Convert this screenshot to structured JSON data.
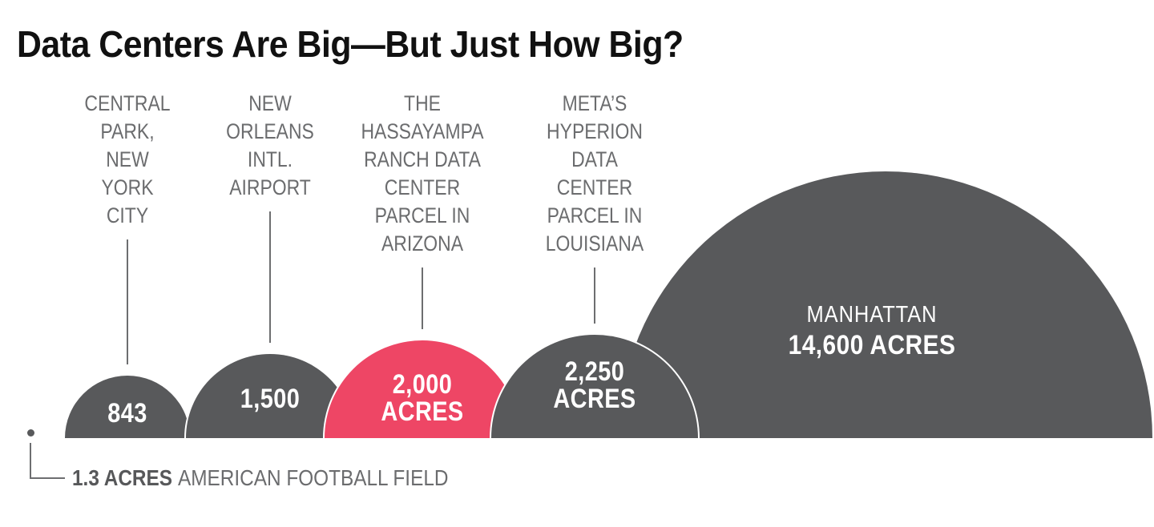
{
  "title": "Data Centers Are Big—But Just How Big?",
  "footnote": {
    "value": "1.3 ACRES",
    "label": "AMERICAN FOOTBALL FIELD"
  },
  "chart_data": {
    "type": "area-proportional-semicircles",
    "title": "Data Centers Are Big—But Just How Big?",
    "unit": "acres",
    "items": [
      {
        "label": "CENTRAL\nPARK,\nNEW\nYORK\nCITY",
        "acres": 843,
        "value_label": "843",
        "highlight": false
      },
      {
        "label": "NEW\nORLEANS\nINTL.\nAIRPORT",
        "acres": 1500,
        "value_label": "1,500",
        "highlight": false
      },
      {
        "label": "THE\nHASSAYAMPA\nRANCH DATA\nCENTER\nPARCEL IN\nARIZONA",
        "acres": 2000,
        "value_label": "2,000\nACRES",
        "highlight": true
      },
      {
        "label": "META’S\nHYPERION\nDATA\nCENTER\nPARCEL IN\nLOUISIANA",
        "acres": 2250,
        "value_label": "2,250\nACRES",
        "highlight": false
      },
      {
        "acres": 14600,
        "inside_title": "MANHATTAN",
        "inside_value": "14,600 ACRES",
        "highlight": false
      }
    ],
    "reference": {
      "acres": 1.3,
      "value_label": "1.3 ACRES",
      "label": "AMERICAN FOOTBALL FIELD"
    },
    "colors": {
      "default": "#58595b",
      "highlight": "#ee4665",
      "label_text": "#6b6c6e",
      "value_text": "#ffffff",
      "title_text": "#111111",
      "connector": "#6d6e70"
    },
    "layout_hints": {
      "baseline_flat_bottom": true,
      "scale": "radius proportional to sqrt(acres)",
      "legend": "none"
    }
  }
}
